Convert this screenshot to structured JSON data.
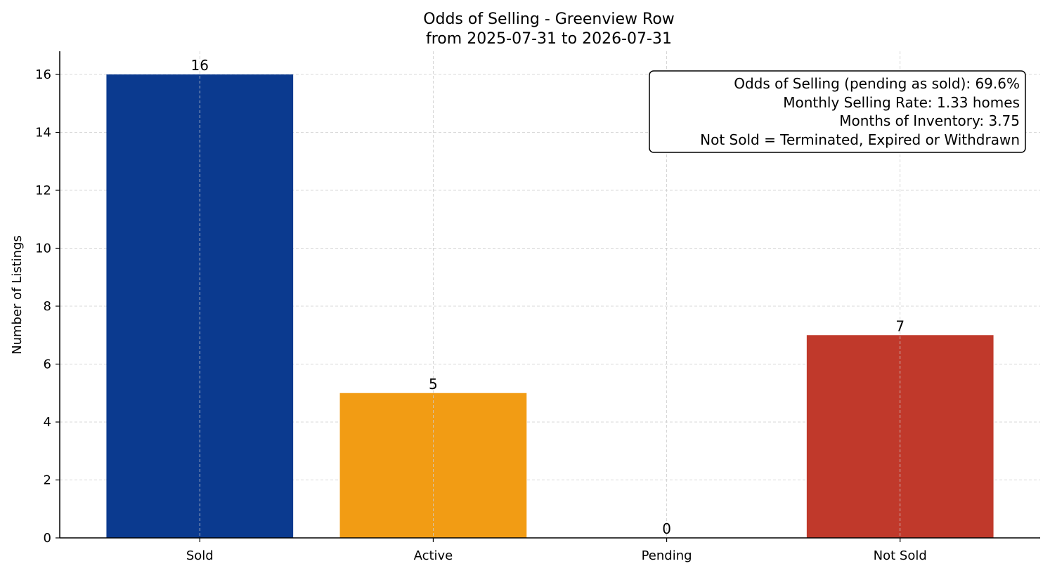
{
  "chart_data": {
    "type": "bar",
    "title": "Odds of Selling - Greenview Row",
    "subtitle": "from 2025-07-31 to 2026-07-31",
    "xlabel": "",
    "ylabel": "Number of Listings",
    "categories": [
      "Sold",
      "Active",
      "Pending",
      "Not Sold"
    ],
    "values": [
      16,
      5,
      0,
      7
    ],
    "value_labels": [
      "16",
      "5",
      "0",
      "7"
    ],
    "colors": [
      "#0b3a8f",
      "#f29c14",
      "#4a7ebb",
      "#c0392b"
    ],
    "ylim": [
      0,
      16.8
    ],
    "yticks": [
      0,
      2,
      4,
      6,
      8,
      10,
      12,
      14,
      16
    ],
    "ytick_labels": [
      "0",
      "2",
      "4",
      "6",
      "8",
      "10",
      "12",
      "14",
      "16"
    ],
    "grid": true,
    "info_box": {
      "placement": "top-right",
      "lines": [
        "Odds of Selling (pending as sold): 69.6%",
        "Monthly Selling Rate: 1.33 homes",
        "Months of Inventory: 3.75",
        "Not Sold = Terminated, Expired or Withdrawn"
      ]
    }
  }
}
